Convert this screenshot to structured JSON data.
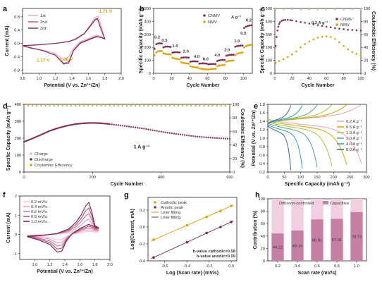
{
  "chart_data": [
    {
      "panel": "a",
      "type": "line",
      "xlabel": "Potential (V vs. Zn²⁺/Zn)",
      "ylabel": "Current (mA)",
      "xlim": [
        0.8,
        2.0
      ],
      "ylim": [
        -0.9,
        1.05
      ],
      "xticks": [
        "0.8",
        "1.0",
        "1.2",
        "1.4",
        "1.6",
        "1.8",
        "2.0"
      ],
      "yticks": [
        "-0.8",
        "-0.4",
        "0.0",
        "0.4",
        "0.8"
      ],
      "series": [
        {
          "name": "1st",
          "color": "#f2a6c8",
          "x": [
            0.8,
            1.0,
            1.2,
            1.3,
            1.38,
            1.45,
            1.55,
            1.62,
            1.68,
            1.72,
            1.76,
            1.8,
            1.76,
            1.7,
            1.6,
            1.5,
            1.42,
            1.36,
            1.3,
            1.2,
            1.05,
            0.9,
            0.8
          ],
          "y": [
            -0.08,
            -0.05,
            0.0,
            0.03,
            0.06,
            0.12,
            0.3,
            0.55,
            0.78,
            0.82,
            0.5,
            0.15,
            0.2,
            0.25,
            0.15,
            0.05,
            -0.15,
            -0.4,
            -0.5,
            -0.3,
            -0.2,
            -0.15,
            -0.08
          ]
        },
        {
          "name": "2nd",
          "color": "#c85b92",
          "x": [
            0.8,
            1.0,
            1.2,
            1.3,
            1.38,
            1.45,
            1.55,
            1.62,
            1.68,
            1.71,
            1.75,
            1.8,
            1.76,
            1.7,
            1.6,
            1.5,
            1.42,
            1.36,
            1.3,
            1.2,
            1.05,
            0.9,
            0.8
          ],
          "y": [
            -0.07,
            -0.04,
            0.0,
            0.03,
            0.07,
            0.14,
            0.3,
            0.52,
            0.72,
            0.76,
            0.48,
            0.14,
            0.18,
            0.22,
            0.12,
            0.02,
            -0.2,
            -0.55,
            -0.6,
            -0.35,
            -0.22,
            -0.14,
            -0.07
          ]
        },
        {
          "name": "3rd",
          "color": "#7a2e55",
          "x": [
            0.8,
            1.0,
            1.2,
            1.3,
            1.38,
            1.45,
            1.55,
            1.62,
            1.68,
            1.71,
            1.75,
            1.8,
            1.76,
            1.7,
            1.6,
            1.5,
            1.42,
            1.36,
            1.3,
            1.2,
            1.05,
            0.9,
            0.8
          ],
          "y": [
            -0.07,
            -0.04,
            0.0,
            0.03,
            0.07,
            0.13,
            0.29,
            0.5,
            0.7,
            0.74,
            0.46,
            0.13,
            0.17,
            0.2,
            0.1,
            0.0,
            -0.22,
            -0.6,
            -0.62,
            -0.36,
            -0.22,
            -0.13,
            -0.07
          ]
        }
      ],
      "annotations": [
        {
          "text": "1.71 V",
          "x": 1.73,
          "y": 0.92,
          "color": "#d9a400"
        },
        {
          "text": "1.17 V",
          "x": 0.97,
          "y": -0.55,
          "color": "#d9a400"
        },
        {
          "text": "1.36 V",
          "x": 1.25,
          "y": -0.52,
          "color": "#d9a400"
        }
      ]
    },
    {
      "panel": "b",
      "type": "scatter",
      "xlabel": "Cycle Number",
      "ylabel": "Specific Capacity (mAh g⁻¹)",
      "xlim": [
        0,
        110
      ],
      "ylim": [
        0,
        500
      ],
      "xticks": [
        "0",
        "20",
        "40",
        "60",
        "80",
        "100"
      ],
      "yticks": [
        "0",
        "100",
        "200",
        "300",
        "400",
        "500"
      ],
      "unit_label": "A g⁻¹",
      "series": [
        {
          "name": "CNMV",
          "color": "#7a2e55",
          "x": [
            1,
            3,
            5,
            7,
            9,
            11,
            13,
            15,
            17,
            19,
            21,
            23,
            25,
            27,
            29,
            31,
            33,
            35,
            37,
            39,
            41,
            43,
            45,
            47,
            49,
            51,
            53,
            55,
            57,
            59,
            61,
            63,
            65,
            67,
            69,
            71,
            73,
            75,
            77,
            79,
            81,
            83,
            85,
            87,
            89,
            91,
            93,
            95,
            97,
            99,
            101,
            103,
            105,
            107,
            109
          ],
          "y": [
            190,
            225,
            230,
            231,
            230,
            200,
            205,
            206,
            205,
            204,
            160,
            162,
            163,
            162,
            161,
            120,
            122,
            123,
            122,
            121,
            90,
            92,
            93,
            92,
            91,
            75,
            76,
            77,
            76,
            75,
            70,
            71,
            72,
            72,
            71,
            95,
            100,
            102,
            103,
            103,
            135,
            140,
            142,
            143,
            143,
            205,
            210,
            212,
            214,
            214,
            350,
            360,
            365,
            368,
            370
          ]
        },
        {
          "name": "NMV",
          "color": "#d9a400",
          "x": [
            1,
            3,
            5,
            7,
            9,
            11,
            13,
            15,
            17,
            19,
            21,
            23,
            25,
            27,
            29,
            31,
            33,
            35,
            37,
            39,
            41,
            43,
            45,
            47,
            49,
            51,
            53,
            55,
            57,
            59,
            61,
            63,
            65,
            67,
            69,
            71,
            73,
            75,
            77,
            79,
            81,
            83,
            85,
            87,
            89,
            91,
            93,
            95,
            97,
            99,
            101,
            103,
            105,
            107,
            109
          ],
          "y": [
            140,
            160,
            170,
            172,
            172,
            155,
            150,
            148,
            147,
            146,
            120,
            115,
            112,
            110,
            108,
            85,
            80,
            78,
            76,
            75,
            55,
            50,
            48,
            46,
            45,
            38,
            35,
            33,
            31,
            30,
            30,
            32,
            33,
            34,
            35,
            55,
            60,
            62,
            64,
            65,
            90,
            95,
            97,
            98,
            99,
            140,
            150,
            155,
            158,
            160,
            200,
            210,
            215,
            218,
            220
          ]
        }
      ],
      "rate_labels": [
        {
          "text": "0.2",
          "x": 4,
          "y": 270
        },
        {
          "text": "0.5",
          "x": 12,
          "y": 245
        },
        {
          "text": "1.0",
          "x": 24,
          "y": 200
        },
        {
          "text": "2.0",
          "x": 36,
          "y": 160
        },
        {
          "text": "4.0",
          "x": 48,
          "y": 120
        },
        {
          "text": "8.0",
          "x": 58,
          "y": 100
        },
        {
          "text": "4.0",
          "x": 71,
          "y": 130
        },
        {
          "text": "2.0",
          "x": 82,
          "y": 170
        },
        {
          "text": "1.0",
          "x": 93,
          "y": 240
        },
        {
          "text": "0.5",
          "x": 100,
          "y": 300
        },
        {
          "text": "0.2",
          "x": 106,
          "y": 400
        }
      ]
    },
    {
      "panel": "c",
      "type": "scatter",
      "xlabel": "Cycle Number",
      "ylabel": "Specific Capacity (mAh g⁻¹)",
      "y2label": "Coulombic Efficiency (%)",
      "xlim": [
        0,
        100
      ],
      "ylim": [
        0,
        500
      ],
      "y2lim": [
        0,
        100
      ],
      "xticks": [
        "0",
        "20",
        "40",
        "60",
        "80",
        "100"
      ],
      "yticks": [
        "0",
        "100",
        "200",
        "300",
        "400",
        "500"
      ],
      "y2ticks": [
        "0",
        "20",
        "40",
        "60",
        "80",
        "100"
      ],
      "annotation": "0.2 A g⁻¹",
      "series": [
        {
          "name": "CNMV",
          "color": "#7a2e55",
          "x": [
            1,
            2,
            3,
            4,
            5,
            6,
            8,
            10,
            12,
            15,
            18,
            20,
            25,
            30,
            35,
            40,
            45,
            50,
            55,
            60,
            65,
            70,
            75,
            80,
            85,
            90,
            95,
            100
          ],
          "y": [
            210,
            280,
            330,
            360,
            380,
            395,
            405,
            410,
            412,
            412,
            410,
            408,
            402,
            396,
            390,
            384,
            378,
            372,
            366,
            360,
            354,
            348,
            344,
            340,
            336,
            334,
            332,
            330
          ]
        },
        {
          "name": "NMV",
          "color": "#d9a400",
          "x": [
            1,
            5,
            10,
            15,
            20,
            25,
            30,
            35,
            40,
            45,
            50,
            55,
            60,
            65,
            70,
            75,
            80,
            85,
            90,
            95,
            100
          ],
          "y": [
            80,
            95,
            110,
            125,
            145,
            170,
            200,
            225,
            245,
            262,
            275,
            282,
            285,
            280,
            265,
            240,
            210,
            185,
            165,
            150,
            140
          ]
        },
        {
          "name": "CE",
          "color": "#c9b08a",
          "x": [
            1,
            10,
            20,
            30,
            40,
            50,
            60,
            70,
            80,
            90,
            100
          ],
          "y": [
            99,
            99,
            99,
            99,
            99,
            99,
            99,
            99,
            99,
            99,
            99
          ]
        }
      ]
    },
    {
      "panel": "d",
      "type": "scatter",
      "xlabel": "Cycle Number",
      "ylabel": "Specific Capacity (mAh g⁻¹)",
      "y2label": "Coulombic Efficiency (%)",
      "xlim": [
        0,
        600
      ],
      "ylim": [
        0,
        400
      ],
      "y2lim": [
        0,
        100
      ],
      "xticks": [
        "0",
        "200",
        "400",
        "600"
      ],
      "yticks": [
        "0",
        "100",
        "200",
        "300",
        "400"
      ],
      "y2ticks": [
        "0",
        "20",
        "40",
        "60",
        "80",
        "100"
      ],
      "annotation": "1 A g⁻¹",
      "legend": [
        "Charge",
        "Discharge",
        "Coulombic Efficiency"
      ],
      "series": [
        {
          "name": "Charge",
          "color": "#e8b4cc",
          "x": [
            0,
            25,
            50,
            75,
            100,
            125,
            150,
            175,
            200,
            225,
            250,
            300,
            350,
            400,
            450,
            500,
            550,
            600
          ],
          "y": [
            180,
            200,
            222,
            245,
            262,
            275,
            285,
            290,
            292,
            290,
            285,
            272,
            258,
            240,
            225,
            212,
            204,
            198
          ]
        },
        {
          "name": "Discharge",
          "color": "#7a2e55",
          "x": [
            0,
            25,
            50,
            75,
            100,
            125,
            150,
            175,
            200,
            225,
            250,
            300,
            350,
            400,
            450,
            500,
            550,
            600
          ],
          "y": [
            178,
            198,
            220,
            243,
            260,
            273,
            283,
            288,
            290,
            288,
            283,
            270,
            256,
            238,
            223,
            210,
            202,
            196
          ]
        },
        {
          "name": "Coulombic Efficiency",
          "color": "#d9a400",
          "x": [
            0,
            100,
            200,
            300,
            400,
            500,
            600
          ],
          "y": [
            98,
            98,
            98,
            98,
            98,
            98,
            98
          ]
        }
      ]
    },
    {
      "panel": "e",
      "type": "line",
      "xlabel": "Specific Capacity (mAh g⁻¹)",
      "ylabel": "Potential (V vs. Zn²⁺/Zn)",
      "xlim": [
        0,
        300
      ],
      "ylim": [
        0.2,
        1.8
      ],
      "xticks": [
        "0",
        "50",
        "100",
        "150",
        "200",
        "250",
        "300"
      ],
      "yticks": [
        "0.2",
        "0.4",
        "0.6",
        "0.8",
        "1.0",
        "1.2",
        "1.4",
        "1.6",
        "1.8"
      ],
      "series": [
        {
          "name": "0.2 A g⁻¹",
          "color": "#e8a0c0",
          "cap": 285
        },
        {
          "name": "0.5 A g⁻¹",
          "color": "#d9a400",
          "cap": 240
        },
        {
          "name": "1.0 A g⁻¹",
          "color": "#a8c43a",
          "cap": 195
        },
        {
          "name": "2.0 A g⁻¹",
          "color": "#4caf7a",
          "cap": 150
        },
        {
          "name": "4.0 A g⁻¹",
          "color": "#2e9cb5",
          "cap": 105
        },
        {
          "name": "8.0 A g⁻¹",
          "color": "#3a5fa8",
          "cap": 70
        }
      ]
    },
    {
      "panel": "f",
      "type": "line",
      "xlabel": "Potential (V vs. Zn²⁺/Zn)",
      "ylabel": "Current (mA)",
      "xlim": [
        0.8,
        2.0
      ],
      "ylim": [
        -1.3,
        2.0
      ],
      "xticks": [
        "1.0",
        "1.2",
        "1.4",
        "1.6",
        "1.8",
        "2.0"
      ],
      "yticks": [
        "-1",
        "0",
        "1",
        "2"
      ],
      "series": [
        {
          "name": "0.2 mV/s",
          "color": "#f3c3d8",
          "scale": 0.35
        },
        {
          "name": "0.4 mV/s",
          "color": "#e99bbf",
          "scale": 0.55
        },
        {
          "name": "0.6 mV/s",
          "color": "#d66c9c",
          "scale": 0.75
        },
        {
          "name": "0.8 mV/s",
          "color": "#b04a7c",
          "scale": 0.95
        },
        {
          "name": "1.0 mV/s",
          "color": "#6d2447",
          "scale": 1.15
        }
      ]
    },
    {
      "panel": "g",
      "type": "scatter",
      "xlabel": "Log (Scan rate) (mV/s)",
      "ylabel": "Log(Current, mA)",
      "xlim": [
        -0.75,
        0.05
      ],
      "ylim": [
        -0.4,
        0.35
      ],
      "xticks": [
        "-0.6",
        "-0.4",
        "-0.2",
        "0.0"
      ],
      "yticks": [
        "-0.4",
        "-0.2",
        "0.0",
        "0.2"
      ],
      "legend": [
        "Cathodic peak",
        "Anodic peak",
        "Liner fitting",
        "Liner fitting"
      ],
      "series": [
        {
          "name": "Cathodic peak",
          "color": "#d9a400",
          "x": [
            -0.699,
            -0.398,
            -0.222,
            -0.097,
            0.0
          ],
          "y": [
            -0.15,
            0.02,
            0.12,
            0.19,
            0.25
          ]
        },
        {
          "name": "Anodic peak",
          "color": "#7a2e55",
          "x": [
            -0.699,
            -0.398,
            -0.222,
            -0.097,
            0.0
          ],
          "y": [
            -0.36,
            -0.18,
            -0.07,
            0.0,
            0.06
          ]
        }
      ],
      "fit_notes": [
        "b-value cathodic=0.58",
        "b-value anodic=0.59"
      ]
    },
    {
      "panel": "h",
      "type": "bar",
      "xlabel": "Scan rate (mV/s)",
      "ylabel": "Contribution (%)",
      "ylim": [
        0,
        100
      ],
      "categories": [
        "0.2",
        "0.4",
        "0.6",
        "0.8",
        "1.0"
      ],
      "yticks": [
        "0",
        "20",
        "40",
        "60",
        "80",
        "100"
      ],
      "legend": [
        "Diffusion-controlled",
        "Capacitive"
      ],
      "series": [
        {
          "name": "Capacitive",
          "color": "#c77fa4",
          "values": [
            44.22,
            49.14,
            66.91,
            67.91,
            78.73
          ]
        },
        {
          "name": "Diffusion-controlled",
          "color": "#f1cfe0",
          "values": [
            55.78,
            50.86,
            33.09,
            32.09,
            21.27
          ]
        }
      ],
      "value_labels": [
        "44.22",
        "49.14",
        "66.91",
        "67.91",
        "78.73"
      ]
    }
  ]
}
